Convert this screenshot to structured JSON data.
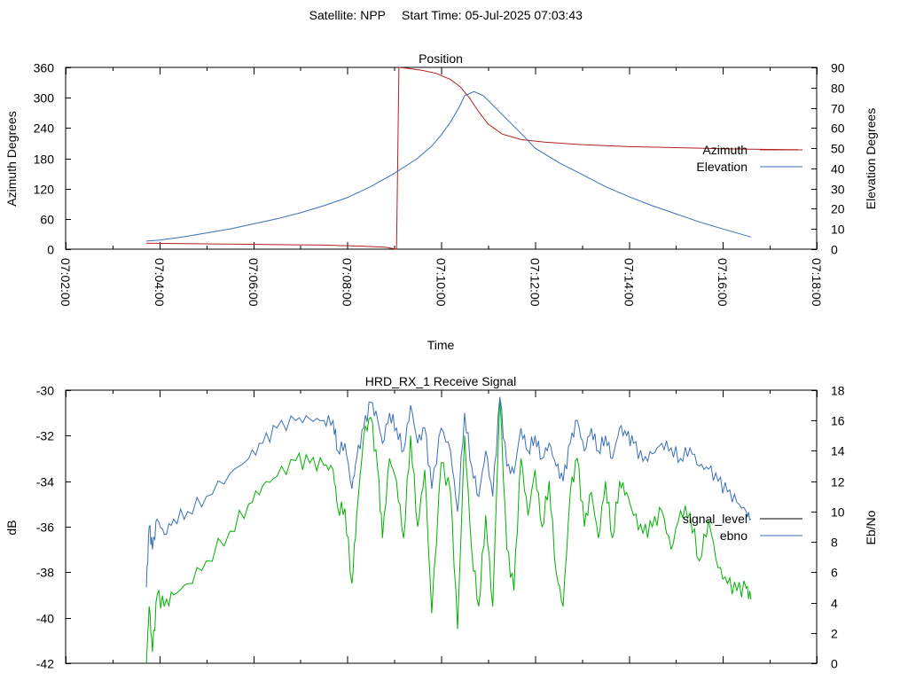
{
  "header": {
    "satellite": "Satellite: NPP",
    "start_time": "Start Time: 05-Jul-2025 07:03:43"
  },
  "colors": {
    "azimuth": "#b02020",
    "elevation": "#3a6fb5",
    "signal_level": "#00b000",
    "ebno": "#3a6fb5",
    "legend_signal_level": "#000000",
    "axes": "#000000"
  },
  "chart_data": [
    {
      "type": "line",
      "title": "Position",
      "xlabel": "Time",
      "ylabel": "Azimuth Degrees",
      "y2label": "Elevation Degrees",
      "xlim_minutes": [
        2,
        18
      ],
      "x_tick_labels": [
        "07:02:00",
        "07:04:00",
        "07:06:00",
        "07:08:00",
        "07:10:00",
        "07:12:00",
        "07:14:00",
        "07:16:00",
        "07:18:00"
      ],
      "ylim": [
        0,
        360
      ],
      "y_ticks": [
        0,
        60,
        120,
        180,
        240,
        300,
        360
      ],
      "y2lim": [
        0,
        90
      ],
      "y2_ticks": [
        0,
        10,
        20,
        30,
        40,
        50,
        60,
        70,
        80,
        90
      ],
      "legend_position": "right",
      "x_unit": "minutes after 07:00:00",
      "series": [
        {
          "name": "Azimuth",
          "axis": "left",
          "x": [
            3.72,
            4.5,
            5.5,
            6.5,
            7.5,
            8.3,
            8.8,
            9.05,
            9.1,
            9.3,
            9.6,
            9.9,
            10.2,
            10.4,
            10.6,
            10.8,
            11.0,
            11.3,
            11.7,
            12.2,
            13.0,
            14.0,
            15.0,
            16.0,
            16.6,
            17.6
          ],
          "values": [
            12,
            11,
            10,
            9,
            8,
            6,
            4,
            0,
            360,
            358,
            354,
            348,
            336,
            322,
            300,
            272,
            248,
            228,
            217,
            212,
            207,
            203,
            201,
            199,
            198,
            197
          ]
        },
        {
          "name": "Elevation",
          "axis": "right",
          "x": [
            3.72,
            4.0,
            4.5,
            5.0,
            5.5,
            6.0,
            6.5,
            7.0,
            7.5,
            8.0,
            8.5,
            9.0,
            9.5,
            9.8,
            10.0,
            10.2,
            10.4,
            10.5,
            10.7,
            10.9,
            11.2,
            11.5,
            11.8,
            12.0,
            12.5,
            13.0,
            13.5,
            14.0,
            14.5,
            15.0,
            15.5,
            16.0,
            16.6
          ],
          "values": [
            4,
            4.5,
            6,
            8,
            10,
            12.5,
            15,
            18,
            21.5,
            25.5,
            31,
            37.5,
            45,
            51,
            56.5,
            63,
            71,
            76,
            78,
            76,
            69,
            62,
            55,
            50,
            43,
            37,
            31,
            26,
            21.5,
            17.5,
            13.5,
            10,
            6
          ]
        }
      ]
    },
    {
      "type": "line",
      "title": "HRD_RX_1 Receive Signal",
      "ylabel": "dB",
      "y2label": "Eb/No",
      "xlim_minutes": [
        2,
        18
      ],
      "ylim": [
        -42,
        -30
      ],
      "y_ticks": [
        -42,
        -40,
        -38,
        -36,
        -34,
        -32,
        -30
      ],
      "y2lim": [
        0,
        18
      ],
      "y2_ticks": [
        0,
        2,
        4,
        6,
        8,
        10,
        12,
        14,
        16,
        18
      ],
      "legend_position": "right",
      "x_unit": "minutes after 07:00:00",
      "series": [
        {
          "name": "signal_level",
          "axis": "left",
          "x": [
            3.72,
            3.78,
            3.85,
            3.95,
            4.1,
            4.3,
            4.6,
            5.0,
            5.5,
            5.9,
            6.2,
            6.5,
            6.9,
            7.2,
            7.5,
            7.7,
            7.8,
            7.95,
            8.1,
            8.2,
            8.35,
            8.5,
            8.65,
            8.75,
            8.9,
            9.05,
            9.2,
            9.35,
            9.5,
            9.65,
            9.8,
            10.0,
            10.2,
            10.35,
            10.5,
            10.65,
            10.8,
            10.95,
            11.1,
            11.25,
            11.4,
            11.55,
            11.7,
            11.85,
            12.0,
            12.15,
            12.3,
            12.45,
            12.6,
            12.75,
            12.9,
            13.05,
            13.2,
            13.35,
            13.5,
            13.65,
            13.8,
            13.95,
            14.1,
            14.3,
            14.5,
            14.7,
            14.9,
            15.1,
            15.3,
            15.5,
            15.7,
            15.9,
            16.1,
            16.3,
            16.5,
            16.6
          ],
          "values": [
            -42,
            -39.5,
            -41.5,
            -39,
            -39.5,
            -39,
            -38.5,
            -37.5,
            -36.2,
            -35,
            -34.2,
            -33.8,
            -33.1,
            -33.2,
            -33.3,
            -33.5,
            -35.2,
            -35.2,
            -38.5,
            -35.5,
            -32,
            -31.2,
            -33.5,
            -36.5,
            -33,
            -34,
            -36.5,
            -32,
            -36,
            -33.5,
            -39.8,
            -33.2,
            -34.5,
            -40.5,
            -32,
            -37,
            -39.5,
            -35.5,
            -39.5,
            -30.3,
            -37,
            -38.8,
            -33,
            -35.5,
            -33.5,
            -36,
            -34,
            -38,
            -39.5,
            -34.5,
            -33,
            -36,
            -34.5,
            -36.5,
            -34,
            -36.5,
            -34,
            -34.5,
            -35.5,
            -36.3,
            -36,
            -35.3,
            -37,
            -35.3,
            -35.4,
            -37.5,
            -35.7,
            -37.8,
            -38.5,
            -38.8,
            -38.7,
            -39.2
          ]
        },
        {
          "name": "ebno",
          "axis": "right",
          "x": [
            3.72,
            3.78,
            3.85,
            3.95,
            4.1,
            4.3,
            4.6,
            5.0,
            5.5,
            5.9,
            6.2,
            6.5,
            6.9,
            7.2,
            7.5,
            7.7,
            7.8,
            7.95,
            8.1,
            8.2,
            8.35,
            8.5,
            8.65,
            8.75,
            8.9,
            9.05,
            9.2,
            9.35,
            9.5,
            9.65,
            9.8,
            10.0,
            10.2,
            10.35,
            10.5,
            10.65,
            10.8,
            10.95,
            11.1,
            11.25,
            11.4,
            11.55,
            11.7,
            11.85,
            12.0,
            12.15,
            12.3,
            12.45,
            12.6,
            12.75,
            12.9,
            13.05,
            13.2,
            13.35,
            13.5,
            13.65,
            13.8,
            13.95,
            14.1,
            14.3,
            14.5,
            14.7,
            14.9,
            15.1,
            15.3,
            15.5,
            15.7,
            15.9,
            16.1,
            16.3,
            16.5,
            16.6
          ],
          "values": [
            5,
            9,
            7.5,
            9.5,
            8.5,
            9.5,
            10,
            11,
            12.5,
            13.5,
            14.5,
            15.5,
            16,
            16.1,
            16,
            16,
            14,
            14.5,
            11.5,
            13.5,
            15.5,
            17.2,
            16,
            14.5,
            16.5,
            15.5,
            14,
            17,
            14.5,
            15.5,
            11.5,
            15.5,
            14,
            10,
            16.5,
            13,
            11,
            14,
            11,
            17.5,
            13,
            12.5,
            15.5,
            14,
            15,
            13.5,
            14.5,
            13,
            12,
            14.5,
            16,
            14,
            15.5,
            14,
            15,
            13.5,
            15.5,
            15,
            14.5,
            13.3,
            13.8,
            14.5,
            14.2,
            13.5,
            14.2,
            13,
            12.8,
            12,
            11.3,
            10.6,
            10,
            9.5
          ]
        }
      ]
    }
  ]
}
